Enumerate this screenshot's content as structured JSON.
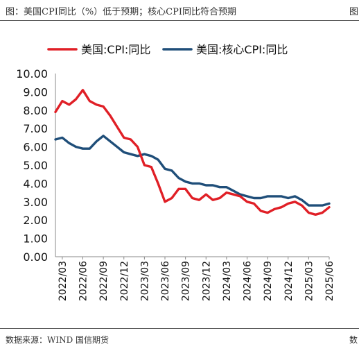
{
  "header": {
    "title": "图：美国CPI同比（%）低于预期；核心CPI同比符合预期",
    "edge_text": "图"
  },
  "footer": {
    "source": "数据来源：WIND 国信期货",
    "edge_text": "数"
  },
  "chart_data": {
    "type": "line",
    "title": "",
    "xlabel": "",
    "ylabel": "",
    "ylim": [
      0,
      10
    ],
    "yticks": [
      "0.00",
      "1.00",
      "2.00",
      "3.00",
      "4.00",
      "5.00",
      "6.00",
      "7.00",
      "8.00",
      "9.00",
      "10.00"
    ],
    "grid": false,
    "legend_position": "top",
    "x": [
      "2022/02",
      "2022/03",
      "2022/04",
      "2022/05",
      "2022/06",
      "2022/07",
      "2022/08",
      "2022/09",
      "2022/10",
      "2022/11",
      "2022/12",
      "2023/01",
      "2023/02",
      "2023/03",
      "2023/04",
      "2023/05",
      "2023/06",
      "2023/07",
      "2023/08",
      "2023/09",
      "2023/10",
      "2023/11",
      "2023/12",
      "2024/01",
      "2024/02",
      "2024/03",
      "2024/04",
      "2024/05",
      "2024/06",
      "2024/07",
      "2024/08",
      "2024/09",
      "2024/10",
      "2024/11",
      "2024/12",
      "2025/01",
      "2025/02",
      "2025/03",
      "2025/04",
      "2025/05",
      "2025/06"
    ],
    "xtick_labels": [
      "2022/03",
      "2022/06",
      "2022/09",
      "2022/12",
      "2023/03",
      "2023/06",
      "2023/09",
      "2023/12",
      "2024/03",
      "2024/06",
      "2024/09",
      "2024/12",
      "2025/03",
      "2025/06"
    ],
    "series": [
      {
        "name": "美国:CPI:同比",
        "color": "#e01f26",
        "values": [
          7.9,
          8.5,
          8.3,
          8.6,
          9.1,
          8.5,
          8.3,
          8.2,
          7.7,
          7.1,
          6.5,
          6.4,
          6.0,
          5.0,
          4.9,
          4.0,
          3.0,
          3.2,
          3.7,
          3.7,
          3.2,
          3.1,
          3.4,
          3.1,
          3.2,
          3.5,
          3.4,
          3.3,
          3.0,
          2.9,
          2.5,
          2.4,
          2.6,
          2.7,
          2.9,
          3.0,
          2.8,
          2.4,
          2.3,
          2.4,
          2.7
        ]
      },
      {
        "name": "美国:核心CPI:同比",
        "color": "#1f4e79",
        "values": [
          6.4,
          6.5,
          6.2,
          6.0,
          5.9,
          5.9,
          6.3,
          6.6,
          6.3,
          6.0,
          5.7,
          5.6,
          5.5,
          5.6,
          5.5,
          5.3,
          4.8,
          4.7,
          4.3,
          4.1,
          4.0,
          4.0,
          3.9,
          3.9,
          3.8,
          3.8,
          3.6,
          3.4,
          3.3,
          3.2,
          3.2,
          3.3,
          3.3,
          3.3,
          3.2,
          3.3,
          3.1,
          2.8,
          2.8,
          2.8,
          2.9
        ]
      }
    ]
  }
}
